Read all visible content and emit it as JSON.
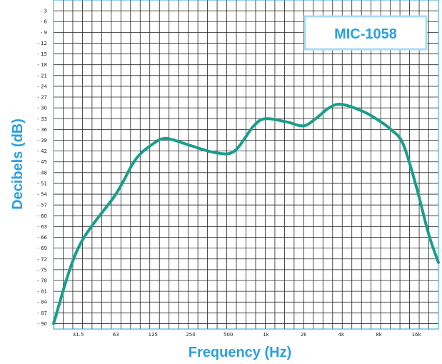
{
  "chart_data": {
    "type": "line",
    "title": "MIC-1058",
    "xlabel": "Frequency (Hz)",
    "ylabel": "Decibels (dB)",
    "x_scale": "log",
    "x_ticks": [
      "31.5",
      "63",
      "125",
      "250",
      "500",
      "1k",
      "2k",
      "4k",
      "8k",
      "16k"
    ],
    "y_ticks": [
      "- 3",
      "- 6",
      "- 9",
      "- 12",
      "- 15",
      "- 18",
      "- 21",
      "- 24",
      "- 27",
      "- 30",
      "- 33",
      "- 36",
      "- 39",
      "- 42",
      "- 45",
      "- 48",
      "- 51",
      "- 54",
      "- 57",
      "- 60",
      "- 63",
      "- 66",
      "- 69",
      "- 72",
      "- 75",
      "- 78",
      "- 81",
      "- 84",
      "- 87",
      "- 90"
    ],
    "ylim": [
      -91.5,
      0
    ],
    "grid": true,
    "line_color": "#1a9e8c",
    "accent_color": "#2aa0e0",
    "series": [
      {
        "x": [
          20,
          31.5,
          63,
          90,
          125,
          160,
          250,
          400,
          560,
          800,
          1000,
          1500,
          2000,
          2500,
          3200,
          4000,
          6000,
          8000,
          10000,
          12500,
          16000,
          20000,
          24000
        ],
        "y": [
          -90,
          -69,
          -54,
          -44.5,
          -40,
          -38.5,
          -40.5,
          -42.5,
          -42,
          -35,
          -33,
          -34,
          -35,
          -33,
          -30,
          -29,
          -31,
          -33.5,
          -36,
          -40,
          -52,
          -65,
          -73
        ]
      }
    ]
  }
}
